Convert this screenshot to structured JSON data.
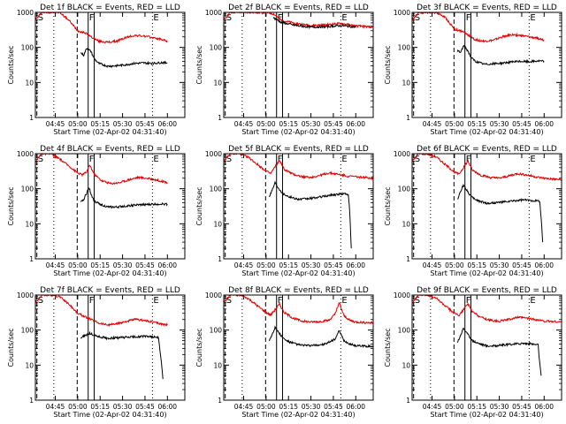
{
  "chart_data": {
    "type": "line",
    "ylabel": "Counts/sec",
    "xlabel": "Start Time (02-Apr-02 04:31:40)",
    "y_scale": "log",
    "ylim": [
      1,
      1000
    ],
    "y_ticks": [
      "1",
      "10",
      "100",
      "1000"
    ],
    "xlim": [
      "04:31:40",
      "06:11:40"
    ],
    "x_ticks": [
      "04:45",
      "05:00",
      "05:15",
      "05:30",
      "05:45",
      "06:00"
    ],
    "event_markers": [
      {
        "label": "S",
        "time": "04:32:40",
        "style": "dashed"
      },
      {
        "label": "F",
        "time": "05:07:00",
        "style": "solid"
      },
      {
        "label": "E",
        "time": "05:50:00",
        "style": "dotted"
      }
    ],
    "extra_lines": [
      {
        "time": "04:44:00",
        "style": "dotted"
      },
      {
        "time": "04:59:40",
        "style": "dashed"
      },
      {
        "time": "05:11:00",
        "style": "solid"
      }
    ],
    "panels": [
      {
        "title": "Det 1f BLACK = Events, RED = LLD",
        "series": [
          {
            "color": "#dd0000",
            "x": [
              "04:31:40",
              "04:36:00",
              "04:42:00",
              "04:48:00",
              "04:54:00",
              "05:00:00",
              "05:05:00",
              "05:09:00",
              "05:14:00",
              "05:20:00",
              "05:26:00",
              "05:32:00",
              "05:38:00",
              "05:44:00",
              "05:50:00",
              "05:56:00",
              "06:00:00"
            ],
            "values": [
              600,
              1000,
              1000,
              1000,
              600,
              300,
              260,
              200,
              150,
              140,
              150,
              190,
              220,
              210,
              190,
              170,
              150
            ]
          },
          {
            "color": "#000000",
            "x": [
              "05:02:00",
              "05:04:00",
              "05:06:00",
              "05:07:30",
              "05:09:00",
              "05:11:00",
              "05:14:00",
              "05:20:00",
              "05:26:00",
              "05:32:00",
              "05:38:00",
              "05:44:00",
              "05:50:00",
              "05:56:00",
              "06:00:00"
            ],
            "values": [
              70,
              60,
              95,
              85,
              75,
              48,
              35,
              29,
              30,
              32,
              35,
              36,
              35,
              37,
              36
            ]
          }
        ]
      },
      {
        "title": "Det 2f BLACK = Events, RED = LLD",
        "series": [
          {
            "color": "#dd0000",
            "x": [
              "04:31:40",
              "04:36:00",
              "04:42:00",
              "04:48:00",
              "04:54:00",
              "05:00:00",
              "05:05:00",
              "05:10:00",
              "05:20:00",
              "05:30:00",
              "05:40:00",
              "05:50:00",
              "06:00:00",
              "06:11:40"
            ],
            "values": [
              600,
              1000,
              1000,
              1000,
              1000,
              1000,
              900,
              600,
              480,
              420,
              440,
              480,
              410,
              380
            ]
          },
          {
            "color": "#000000",
            "x": [
              "05:05:00",
              "05:10:00",
              "05:20:00",
              "05:30:00",
              "05:40:00",
              "05:50:00",
              "06:00:00"
            ],
            "values": [
              700,
              520,
              420,
              380,
              390,
              420,
              380
            ]
          }
        ]
      },
      {
        "title": "Det 3f BLACK = Events, RED = LLD",
        "series": [
          {
            "color": "#dd0000",
            "x": [
              "04:31:40",
              "04:36:00",
              "04:42:00",
              "04:48:00",
              "04:54:00",
              "05:00:00",
              "05:05:00",
              "05:09:00",
              "05:14:00",
              "05:20:00",
              "05:26:00",
              "05:32:00",
              "05:38:00",
              "05:44:00",
              "05:50:00",
              "05:56:00",
              "06:00:00"
            ],
            "values": [
              600,
              1000,
              1000,
              1000,
              700,
              330,
              290,
              230,
              165,
              150,
              160,
              200,
              230,
              220,
              200,
              180,
              160
            ]
          },
          {
            "color": "#000000",
            "x": [
              "05:02:00",
              "05:04:00",
              "05:06:00",
              "05:07:30",
              "05:09:00",
              "05:11:00",
              "05:14:00",
              "05:20:00",
              "05:26:00",
              "05:32:00",
              "05:38:00",
              "05:44:00",
              "05:50:00",
              "05:56:00",
              "06:00:00"
            ],
            "values": [
              80,
              70,
              110,
              95,
              80,
              52,
              40,
              33,
              34,
              36,
              38,
              40,
              39,
              41,
              40
            ]
          }
        ]
      },
      {
        "title": "Det 4f BLACK = Events, RED = LLD",
        "series": [
          {
            "color": "#dd0000",
            "x": [
              "04:31:40",
              "04:36:00",
              "04:42:00",
              "04:48:00",
              "04:54:00",
              "05:00:00",
              "05:03:00",
              "05:06:00",
              "05:08:00",
              "05:11:00",
              "05:16:00",
              "05:22:00",
              "05:28:00",
              "05:34:00",
              "05:40:00",
              "05:46:00",
              "05:52:00",
              "06:00:00"
            ],
            "values": [
              600,
              1000,
              1000,
              700,
              450,
              280,
              250,
              300,
              480,
              260,
              170,
              140,
              150,
              180,
              210,
              200,
              180,
              150
            ]
          },
          {
            "color": "#000000",
            "x": [
              "05:02:00",
              "05:04:00",
              "05:06:00",
              "05:07:30",
              "05:09:00",
              "05:11:00",
              "05:14:00",
              "05:20:00",
              "05:26:00",
              "05:32:00",
              "05:38:00",
              "05:44:00",
              "05:50:00",
              "05:56:00",
              "06:00:00"
            ],
            "values": [
              40,
              50,
              75,
              110,
              70,
              45,
              38,
              30,
              30,
              32,
              34,
              35,
              36,
              37,
              36
            ]
          }
        ]
      },
      {
        "title": "Det 5f BLACK = Events, RED = LLD",
        "series": [
          {
            "color": "#dd0000",
            "x": [
              "04:31:40",
              "04:36:00",
              "04:42:00",
              "04:48:00",
              "04:54:00",
              "05:00:00",
              "05:03:00",
              "05:06:00",
              "05:09:00",
              "05:12:00",
              "05:18:00",
              "05:24:00",
              "05:30:00",
              "05:36:00",
              "05:42:00",
              "05:48:00",
              "05:54:00",
              "06:00:00",
              "06:11:40"
            ],
            "values": [
              600,
              1000,
              1000,
              800,
              500,
              320,
              270,
              420,
              650,
              360,
              260,
              220,
              210,
              240,
              280,
              260,
              230,
              220,
              200
            ]
          },
          {
            "color": "#000000",
            "x": [
              "05:02:00",
              "05:04:00",
              "05:06:00",
              "05:08:00",
              "05:10:00",
              "05:12:00",
              "05:16:00",
              "05:22:00",
              "05:28:00",
              "05:34:00",
              "05:40:00",
              "05:46:00",
              "05:52:00",
              "05:55:00",
              "05:56:00",
              "05:57:00"
            ],
            "values": [
              60,
              90,
              150,
              110,
              85,
              70,
              58,
              50,
              52,
              56,
              62,
              68,
              72,
              70,
              20,
              2
            ]
          }
        ]
      },
      {
        "title": "Det 6f BLACK = Events, RED = LLD",
        "series": [
          {
            "color": "#dd0000",
            "x": [
              "04:31:40",
              "04:36:00",
              "04:42:00",
              "04:48:00",
              "04:54:00",
              "05:00:00",
              "05:03:00",
              "05:06:00",
              "05:09:00",
              "05:12:00",
              "05:18:00",
              "05:24:00",
              "05:30:00",
              "05:36:00",
              "05:42:00",
              "05:48:00",
              "05:54:00",
              "06:00:00",
              "06:11:40"
            ],
            "values": [
              600,
              1000,
              1000,
              800,
              480,
              300,
              260,
              400,
              620,
              340,
              240,
              210,
              200,
              230,
              270,
              250,
              220,
              200,
              180
            ]
          },
          {
            "color": "#000000",
            "x": [
              "05:02:00",
              "05:04:00",
              "05:06:00",
              "05:08:00",
              "05:10:00",
              "05:12:00",
              "05:16:00",
              "05:22:00",
              "05:28:00",
              "05:34:00",
              "05:40:00",
              "05:46:00",
              "05:52:00",
              "05:57:00",
              "05:58:00",
              "05:59:00"
            ],
            "values": [
              50,
              80,
              130,
              95,
              70,
              55,
              45,
              38,
              40,
              42,
              45,
              48,
              46,
              45,
              15,
              3
            ]
          }
        ]
      },
      {
        "title": "Det 7f BLACK = Events, RED = LLD",
        "series": [
          {
            "color": "#dd0000",
            "x": [
              "04:31:40",
              "04:36:00",
              "04:42:00",
              "04:48:00",
              "04:54:00",
              "05:00:00",
              "05:05:00",
              "05:09:00",
              "05:14:00",
              "05:20:00",
              "05:26:00",
              "05:32:00",
              "05:38:00",
              "05:44:00",
              "05:50:00",
              "05:56:00",
              "06:00:00"
            ],
            "values": [
              600,
              1000,
              1000,
              900,
              550,
              300,
              240,
              200,
              160,
              140,
              150,
              175,
              200,
              190,
              170,
              150,
              140
            ]
          },
          {
            "color": "#000000",
            "x": [
              "05:02:00",
              "05:05:00",
              "05:08:00",
              "05:11:00",
              "05:14:00",
              "05:20:00",
              "05:26:00",
              "05:32:00",
              "05:38:00",
              "05:44:00",
              "05:50:00",
              "05:54:00",
              "05:56:00",
              "05:57:00"
            ],
            "values": [
              60,
              70,
              80,
              72,
              65,
              58,
              60,
              62,
              64,
              66,
              65,
              60,
              12,
              4
            ]
          }
        ]
      },
      {
        "title": "Det 8f BLACK = Events, RED = LLD",
        "series": [
          {
            "color": "#dd0000",
            "x": [
              "04:31:40",
              "04:36:00",
              "04:42:00",
              "04:48:00",
              "04:54:00",
              "05:00:00",
              "05:03:00",
              "05:06:00",
              "05:09:00",
              "05:12:00",
              "05:18:00",
              "05:24:00",
              "05:30:00",
              "05:36:00",
              "05:42:00",
              "05:46:00",
              "05:49:00",
              "05:52:00",
              "05:56:00",
              "06:00:00",
              "06:11:40"
            ],
            "values": [
              600,
              1000,
              1000,
              800,
              500,
              320,
              270,
              380,
              550,
              320,
              220,
              180,
              170,
              175,
              190,
              280,
              600,
              260,
              190,
              170,
              160
            ]
          },
          {
            "color": "#000000",
            "x": [
              "05:02:00",
              "05:04:00",
              "05:06:00",
              "05:08:00",
              "05:10:00",
              "05:12:00",
              "05:16:00",
              "05:22:00",
              "05:28:00",
              "05:34:00",
              "05:40:00",
              "05:46:00",
              "05:49:00",
              "05:52:00",
              "05:56:00",
              "06:00:00",
              "06:11:40"
            ],
            "values": [
              50,
              75,
              120,
              90,
              70,
              55,
              45,
              38,
              36,
              37,
              40,
              55,
              95,
              50,
              40,
              36,
              34
            ]
          }
        ]
      },
      {
        "title": "Det 9f BLACK = Events, RED = LLD",
        "series": [
          {
            "color": "#dd0000",
            "x": [
              "04:31:40",
              "04:36:00",
              "04:42:00",
              "04:48:00",
              "04:54:00",
              "05:00:00",
              "05:03:00",
              "05:06:00",
              "05:09:00",
              "05:12:00",
              "05:18:00",
              "05:24:00",
              "05:30:00",
              "05:36:00",
              "05:42:00",
              "05:48:00",
              "05:54:00",
              "06:00:00",
              "06:11:40"
            ],
            "values": [
              600,
              1000,
              1000,
              800,
              480,
              300,
              260,
              380,
              560,
              330,
              230,
              190,
              180,
              200,
              230,
              220,
              200,
              180,
              170
            ]
          },
          {
            "color": "#000000",
            "x": [
              "05:02:00",
              "05:04:00",
              "05:06:00",
              "05:08:00",
              "05:10:00",
              "05:12:00",
              "05:16:00",
              "05:22:00",
              "05:28:00",
              "05:34:00",
              "05:40:00",
              "05:46:00",
              "05:52:00",
              "05:56:00",
              "05:57:00",
              "05:58:00"
            ],
            "values": [
              45,
              70,
              115,
              85,
              65,
              50,
              42,
              35,
              36,
              38,
              40,
              42,
              40,
              38,
              12,
              5
            ]
          }
        ]
      }
    ]
  }
}
